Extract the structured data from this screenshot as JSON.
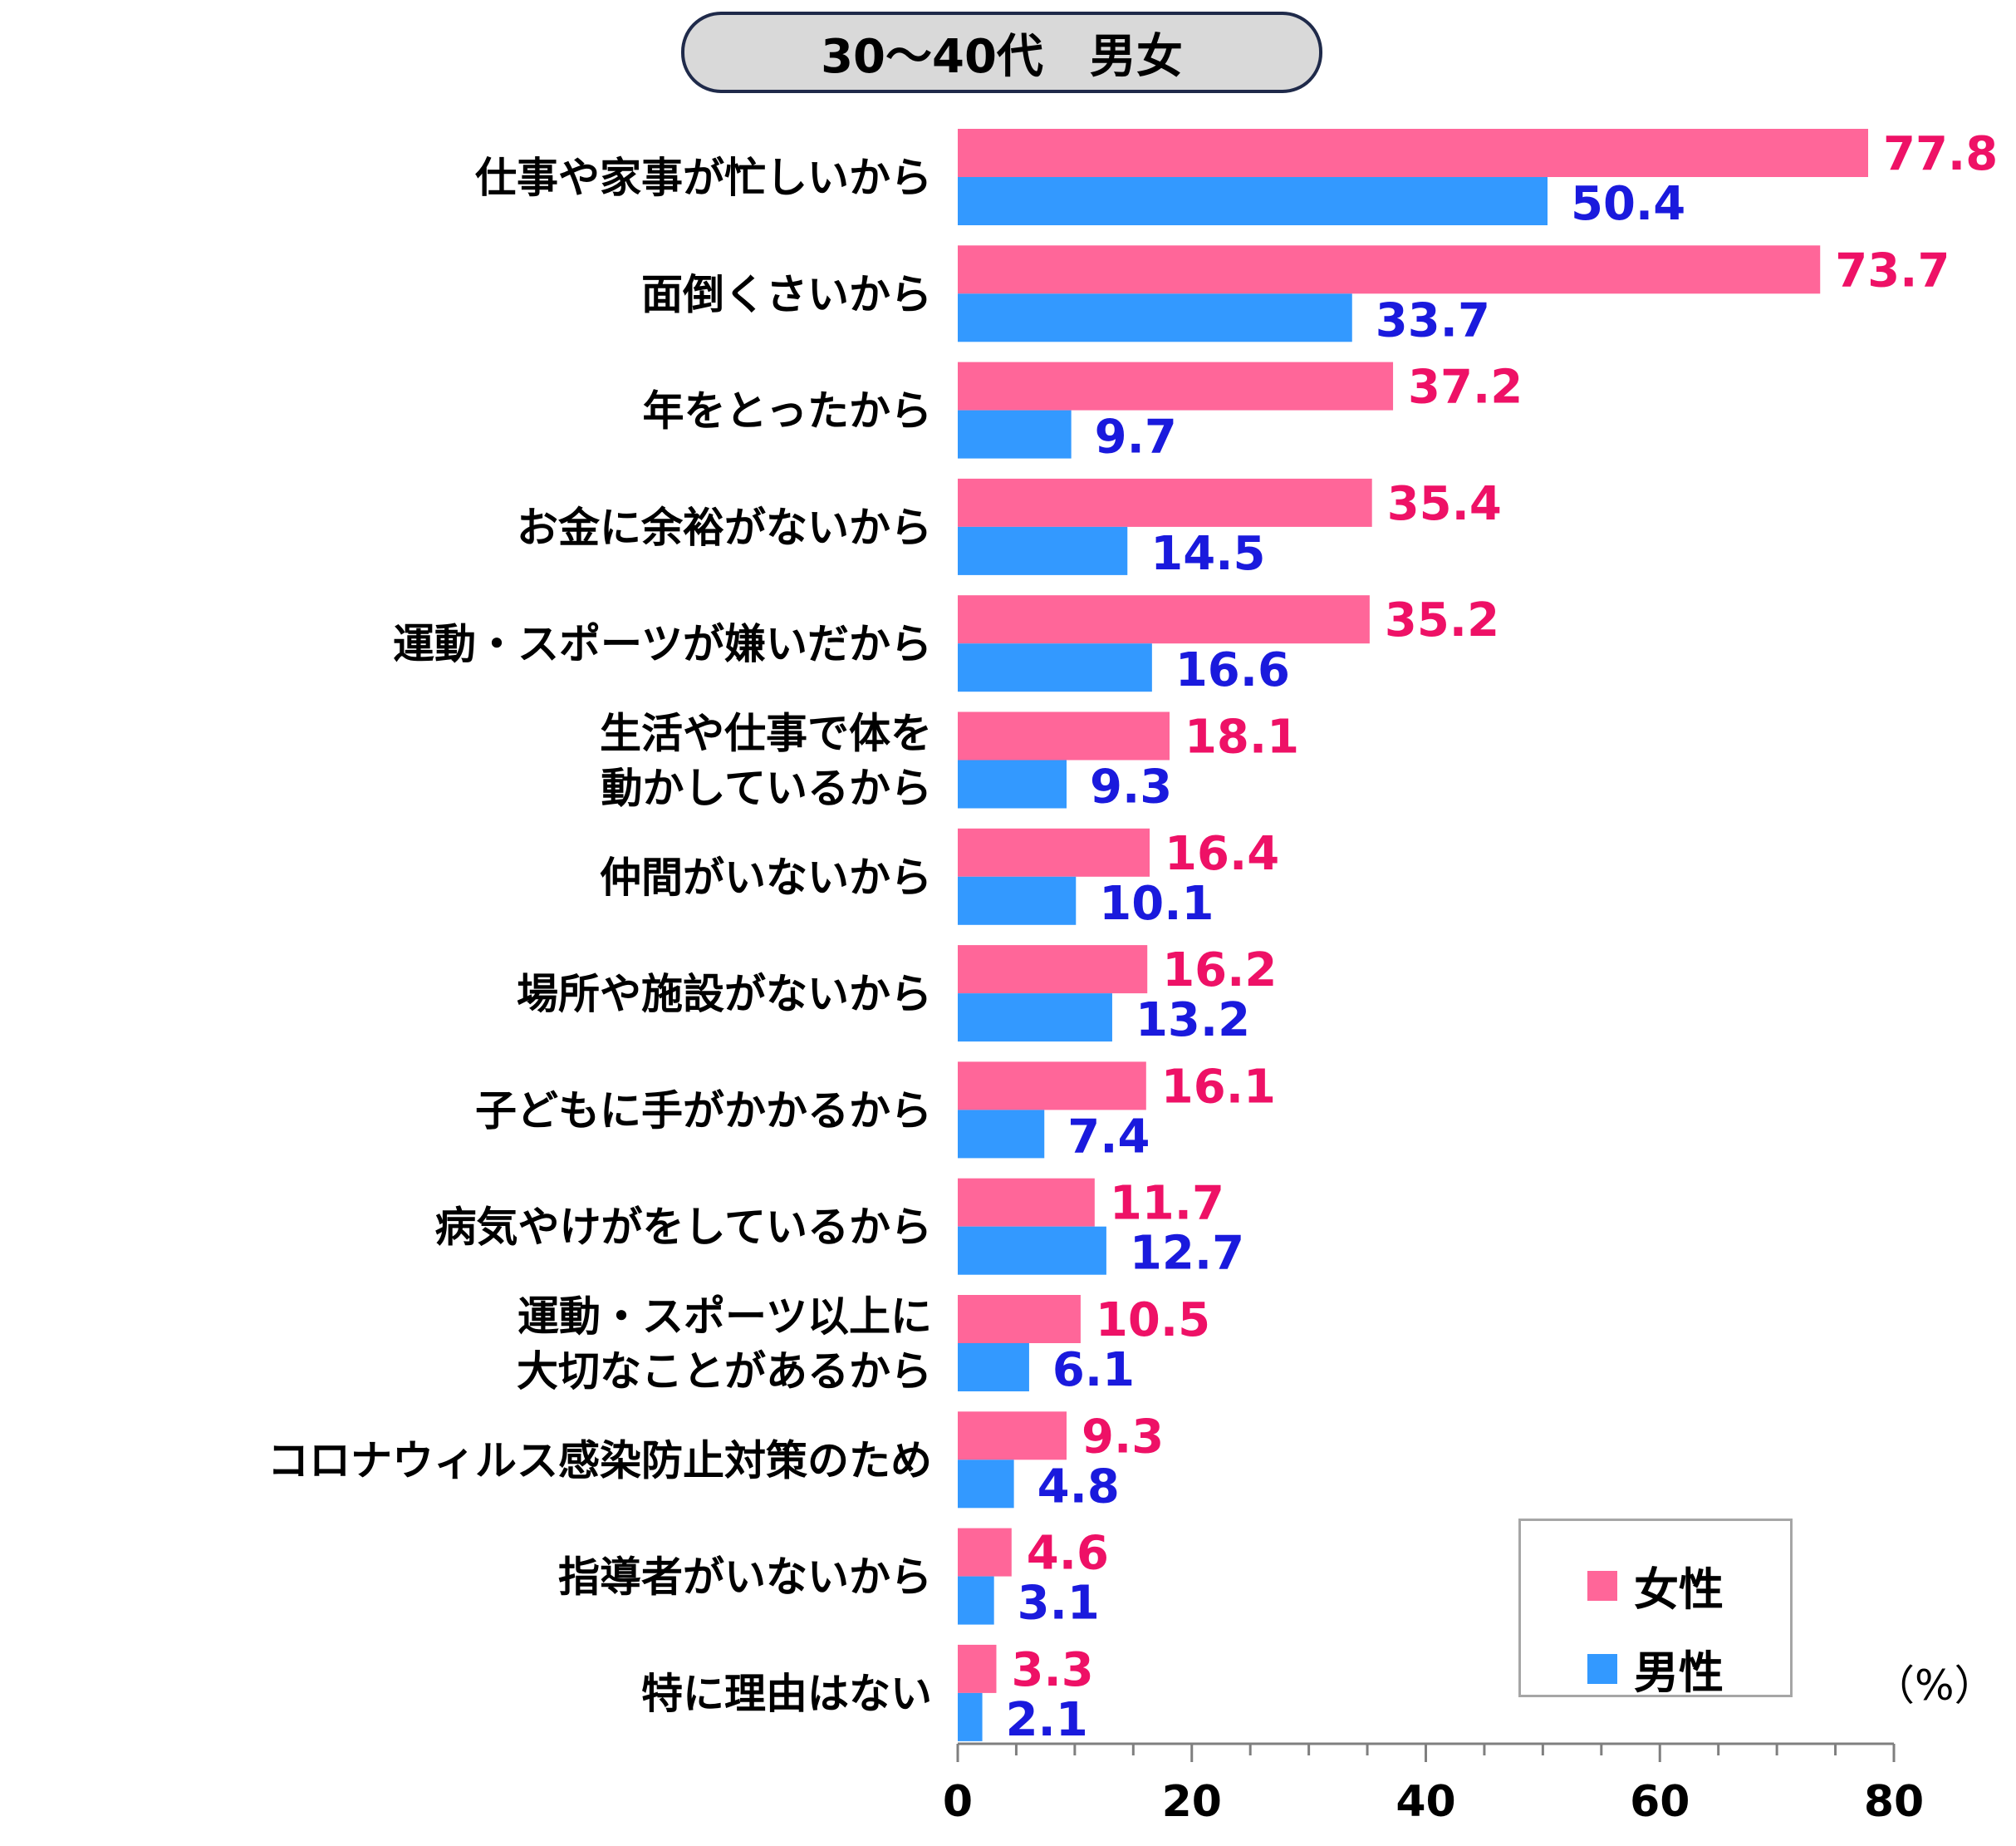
{
  "title": "30～40代　男女",
  "unit_label": "（%）",
  "colors": {
    "female": "#ff6699",
    "male": "#3399ff",
    "female_label": "#ee1166",
    "male_label": "#1a1add"
  },
  "chart_data": {
    "type": "bar",
    "orientation": "horizontal",
    "title": "30～40代　男女",
    "categories": [
      [
        "仕事や家事が忙しいから"
      ],
      [
        "面倒くさいから"
      ],
      [
        "年をとったから"
      ],
      [
        "お金に余裕がないから"
      ],
      [
        "運動・スポーツが嫌いだから"
      ],
      [
        "生活や仕事で体を",
        "動かしているから"
      ],
      [
        "仲間がいないから"
      ],
      [
        "場所や施設がないから"
      ],
      [
        "子どもに手がかかるから"
      ],
      [
        "病気やけがをしているから"
      ],
      [
        "運動・スポーツ以上に",
        "大切なことがあるから"
      ],
      [
        "コロナウィルス感染防止対策のため"
      ],
      [
        "指導者がいないから"
      ],
      [
        "特に理由はない"
      ]
    ],
    "series": [
      {
        "name": "女性",
        "values": [
          77.8,
          73.7,
          37.2,
          35.4,
          35.2,
          18.1,
          16.4,
          16.2,
          16.1,
          11.7,
          10.5,
          9.3,
          4.6,
          3.3
        ]
      },
      {
        "name": "男性",
        "values": [
          50.4,
          33.7,
          9.7,
          14.5,
          16.6,
          9.3,
          10.1,
          13.2,
          7.4,
          12.7,
          6.1,
          4.8,
          3.1,
          2.1
        ]
      }
    ],
    "xlim": [
      0,
      80
    ],
    "xticks": [
      0,
      20,
      40,
      60,
      80
    ],
    "minor_tick_step": 5,
    "grid": false,
    "legend_position": "bottom-right"
  }
}
